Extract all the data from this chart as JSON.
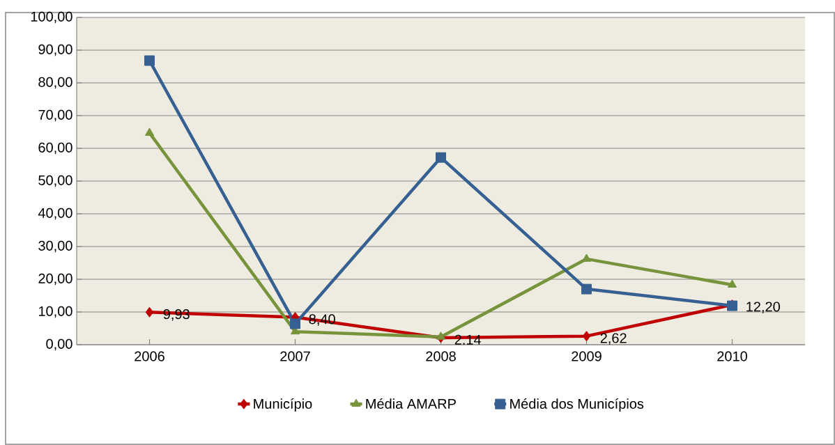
{
  "chart_data": {
    "type": "line",
    "categories": [
      "2006",
      "2007",
      "2008",
      "2009",
      "2010"
    ],
    "series": [
      {
        "name": "Município",
        "color": "#c00000",
        "marker": "diamond",
        "values": [
          9.93,
          8.4,
          2.14,
          2.62,
          12.2
        ],
        "value_labels": [
          "9,93",
          "8,40",
          "2,14",
          "2,62",
          "12,20"
        ]
      },
      {
        "name": "Média AMARP",
        "color": "#77933c",
        "marker": "triangle",
        "values": [
          64.7,
          4.0,
          2.4,
          26.2,
          18.3
        ]
      },
      {
        "name": "Média dos Municípios",
        "color": "#376092",
        "marker": "square",
        "values": [
          86.8,
          6.4,
          57.2,
          17.0,
          11.9
        ]
      }
    ],
    "ylim": [
      0,
      100
    ],
    "yticks": [
      {
        "value": 0,
        "label": "0,00"
      },
      {
        "value": 10,
        "label": "10,00"
      },
      {
        "value": 20,
        "label": "20,00"
      },
      {
        "value": 30,
        "label": "30,00"
      },
      {
        "value": 40,
        "label": "40,00"
      },
      {
        "value": 50,
        "label": "50,00"
      },
      {
        "value": 60,
        "label": "60,00"
      },
      {
        "value": 70,
        "label": "70,00"
      },
      {
        "value": 80,
        "label": "80,00"
      },
      {
        "value": 90,
        "label": "90,00"
      },
      {
        "value": 100,
        "label": "100,00"
      }
    ],
    "grid": "y",
    "legend": "bottom"
  }
}
